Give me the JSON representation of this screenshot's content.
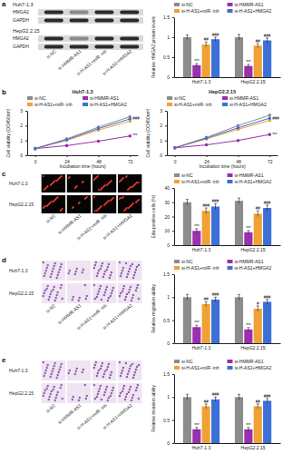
{
  "panel_labels": [
    "a",
    "b",
    "c",
    "d",
    "e"
  ],
  "blots": {
    "rows": [
      "Huh7-1.3",
      "HepG2.2.15"
    ],
    "bands": [
      "HMGA2",
      "GAPDH"
    ],
    "lanes": [
      "si-NC",
      "si-HMMR-AS1",
      "si-H-AS1+miR- inh",
      "si-H-AS1+HMGA2"
    ]
  },
  "edu_images": {
    "rows": [
      "Huh7-1.3",
      "HepG2.2.15"
    ],
    "lanes": [
      "si-NC",
      "si-HMMR-AS1",
      "si-H-AS1+miR- inh",
      "si-H-AS1+HMGA2"
    ]
  },
  "migration_images": {
    "rows": [
      "Huh7-1.3",
      "HepG2.2.15"
    ],
    "lanes": [
      "si-NC",
      "si-HMMR-AS1",
      "si-H-AS1+miR- inh",
      "si-H-AS1+HMGA2"
    ]
  },
  "invasion_images": {
    "rows": [
      "Huh7-1.3",
      "HepG2.2.15"
    ],
    "lanes": [
      "si-NC",
      "si-HMMR-AS1",
      "si-H-AS1+miR- inh",
      "si-H-AS1+HMGA2"
    ]
  },
  "chart_data": [
    {
      "type": "bar",
      "y_label": "Relative HMGA2 protein levels",
      "categories": [
        "Huh7-1.3",
        "HepG2.2.15"
      ],
      "ylim": [
        0,
        1.5
      ],
      "yticks": [
        0,
        0.5,
        1,
        1.5
      ],
      "legend": "top",
      "series": [
        {
          "name": "si-NC",
          "color": "#8c8c8c",
          "values": [
            1,
            1
          ],
          "errors": [
            0.06,
            0.07
          ]
        },
        {
          "name": "si-HMMR-AS1",
          "color": "#9b2fae",
          "values": [
            0.3,
            0.28
          ],
          "errors": [
            0.04,
            0.04
          ]
        },
        {
          "name": "si-H-AS1+miR- inh",
          "color": "#f0a035",
          "values": [
            0.82,
            0.79
          ],
          "errors": [
            0.06,
            0.05
          ]
        },
        {
          "name": "si-H-AS1+HMGA2",
          "color": "#3d6fd8",
          "values": [
            0.95,
            0.92
          ],
          "errors": [
            0.05,
            0.06
          ]
        }
      ],
      "annotations": [
        {
          "text": "***",
          "series": 1,
          "category": 0
        },
        {
          "text": "##",
          "series": 2,
          "category": 0
        },
        {
          "text": "###",
          "series": 3,
          "category": 0
        },
        {
          "text": "***",
          "series": 1,
          "category": 1
        },
        {
          "text": "##",
          "series": 2,
          "category": 1
        },
        {
          "text": "###",
          "series": 3,
          "category": 1
        }
      ]
    },
    {
      "type": "line",
      "title": "Huh7-1.3",
      "x_label": "Incubation time (hours)",
      "y_label": "Cell viability (OD450nm)",
      "x": [
        0,
        24,
        48,
        72
      ],
      "xlim": [
        -6,
        78
      ],
      "xticks": [
        0,
        24,
        48,
        72
      ],
      "ylim": [
        0,
        3
      ],
      "yticks": [
        0,
        1,
        2,
        3
      ],
      "marker": "circle",
      "legend": "top",
      "series": [
        {
          "name": "si-NC",
          "color": "#8c8c8c",
          "values": [
            0.45,
            1.1,
            1.9,
            2.6
          ]
        },
        {
          "name": "si-HMMR-AS1",
          "color": "#9b2fae",
          "values": [
            0.45,
            0.65,
            0.95,
            1.3
          ]
        },
        {
          "name": "si-H-AS1+miR- inh",
          "color": "#f0a035",
          "values": [
            0.45,
            1.0,
            1.7,
            2.3
          ]
        },
        {
          "name": "si-H-AS1+HMGA2",
          "color": "#3d6fd8",
          "values": [
            0.45,
            1.05,
            1.8,
            2.45
          ]
        }
      ],
      "annotations": [
        {
          "text": "***",
          "series": 1,
          "category": 3
        },
        {
          "text": "###",
          "series": 3,
          "category": 3
        }
      ]
    },
    {
      "type": "line",
      "title": "HepG2.2.15",
      "x_label": "Incubation time (hours)",
      "y_label": "Cell viability (OD450nm)",
      "x": [
        0,
        24,
        48,
        72
      ],
      "xlim": [
        -6,
        78
      ],
      "xticks": [
        0,
        24,
        48,
        72
      ],
      "ylim": [
        0,
        3
      ],
      "yticks": [
        0,
        1,
        2,
        3
      ],
      "marker": "circle",
      "legend": "top",
      "series": [
        {
          "name": "si-NC",
          "color": "#8c8c8c",
          "values": [
            0.5,
            1.2,
            2.0,
            2.7
          ]
        },
        {
          "name": "si-HMMR-AS1",
          "color": "#9b2fae",
          "values": [
            0.5,
            0.7,
            1.0,
            1.4
          ]
        },
        {
          "name": "si-H-AS1+miR- inh",
          "color": "#f0a035",
          "values": [
            0.5,
            1.1,
            1.75,
            2.35
          ]
        },
        {
          "name": "si-H-AS1+HMGA2",
          "color": "#3d6fd8",
          "values": [
            0.5,
            1.15,
            1.85,
            2.5
          ]
        }
      ],
      "annotations": [
        {
          "text": "***",
          "series": 1,
          "category": 3
        },
        {
          "text": "###",
          "series": 3,
          "category": 3
        }
      ]
    },
    {
      "type": "bar",
      "y_label": "Edu-positive cells (%)",
      "categories": [
        "Huh7-1.3",
        "HepG2.2.15"
      ],
      "ylim": [
        0,
        40
      ],
      "yticks": [
        0,
        10,
        20,
        30,
        40
      ],
      "legend": "top",
      "series": [
        {
          "name": "si-NC",
          "color": "#8c8c8c",
          "values": [
            30,
            31
          ],
          "errors": [
            2,
            2
          ]
        },
        {
          "name": "si-HMMR-AS1",
          "color": "#9b2fae",
          "values": [
            10,
            9
          ],
          "errors": [
            1.5,
            1.2
          ]
        },
        {
          "name": "si-H-AS1+miR- inh",
          "color": "#f0a035",
          "values": [
            24,
            22
          ],
          "errors": [
            2,
            2
          ]
        },
        {
          "name": "si-H-AS1+HMGA2",
          "color": "#3d6fd8",
          "values": [
            27,
            26
          ],
          "errors": [
            2,
            2
          ]
        }
      ],
      "annotations": [
        {
          "text": "***",
          "series": 1,
          "category": 0
        },
        {
          "text": "###",
          "series": 2,
          "category": 0
        },
        {
          "text": "###",
          "series": 3,
          "category": 0
        },
        {
          "text": "***",
          "series": 1,
          "category": 1
        },
        {
          "text": "##",
          "series": 2,
          "category": 1
        },
        {
          "text": "###",
          "series": 3,
          "category": 1
        }
      ]
    },
    {
      "type": "bar",
      "y_label": "Relative migration ability",
      "categories": [
        "Huh7-1.3",
        "HepG2.2.15"
      ],
      "ylim": [
        0,
        1.5
      ],
      "yticks": [
        0,
        0.5,
        1,
        1.5
      ],
      "legend": "top",
      "series": [
        {
          "name": "si-NC",
          "color": "#8c8c8c",
          "values": [
            1,
            1
          ],
          "errors": [
            0.06,
            0.06
          ]
        },
        {
          "name": "si-HMMR-AS1",
          "color": "#9b2fae",
          "values": [
            0.35,
            0.3
          ],
          "errors": [
            0.04,
            0.04
          ]
        },
        {
          "name": "si-H-AS1+miR- inh",
          "color": "#f0a035",
          "values": [
            0.85,
            0.75
          ],
          "errors": [
            0.05,
            0.06
          ]
        },
        {
          "name": "si-H-AS1+HMGA2",
          "color": "#3d6fd8",
          "values": [
            0.95,
            0.9
          ],
          "errors": [
            0.05,
            0.05
          ]
        }
      ],
      "annotations": [
        {
          "text": "***",
          "series": 1,
          "category": 0
        },
        {
          "text": "##",
          "series": 2,
          "category": 0
        },
        {
          "text": "###",
          "series": 3,
          "category": 0
        },
        {
          "text": "***",
          "series": 1,
          "category": 1
        },
        {
          "text": "#",
          "series": 2,
          "category": 1
        },
        {
          "text": "###",
          "series": 3,
          "category": 1
        }
      ]
    },
    {
      "type": "bar",
      "y_label": "Relative invasion ability",
      "categories": [
        "Huh7-1.3",
        "HepG2.2.15"
      ],
      "ylim": [
        0,
        1.5
      ],
      "yticks": [
        0,
        0.5,
        1,
        1.5
      ],
      "legend": "top",
      "series": [
        {
          "name": "si-NC",
          "color": "#8c8c8c",
          "values": [
            1,
            1
          ],
          "errors": [
            0.06,
            0.06
          ]
        },
        {
          "name": "si-HMMR-AS1",
          "color": "#9b2fae",
          "values": [
            0.3,
            0.3
          ],
          "errors": [
            0.04,
            0.04
          ]
        },
        {
          "name": "si-H-AS1+miR- inh",
          "color": "#f0a035",
          "values": [
            0.8,
            0.8
          ],
          "errors": [
            0.05,
            0.05
          ]
        },
        {
          "name": "si-H-AS1+HMGA2",
          "color": "#3d6fd8",
          "values": [
            0.95,
            0.92
          ],
          "errors": [
            0.05,
            0.05
          ]
        }
      ],
      "annotations": [
        {
          "text": "***",
          "series": 1,
          "category": 0
        },
        {
          "text": "##",
          "series": 2,
          "category": 0
        },
        {
          "text": "###",
          "series": 3,
          "category": 0
        },
        {
          "text": "***",
          "series": 1,
          "category": 1
        },
        {
          "text": "##",
          "series": 2,
          "category": 1
        },
        {
          "text": "###",
          "series": 3,
          "category": 1
        }
      ]
    }
  ]
}
